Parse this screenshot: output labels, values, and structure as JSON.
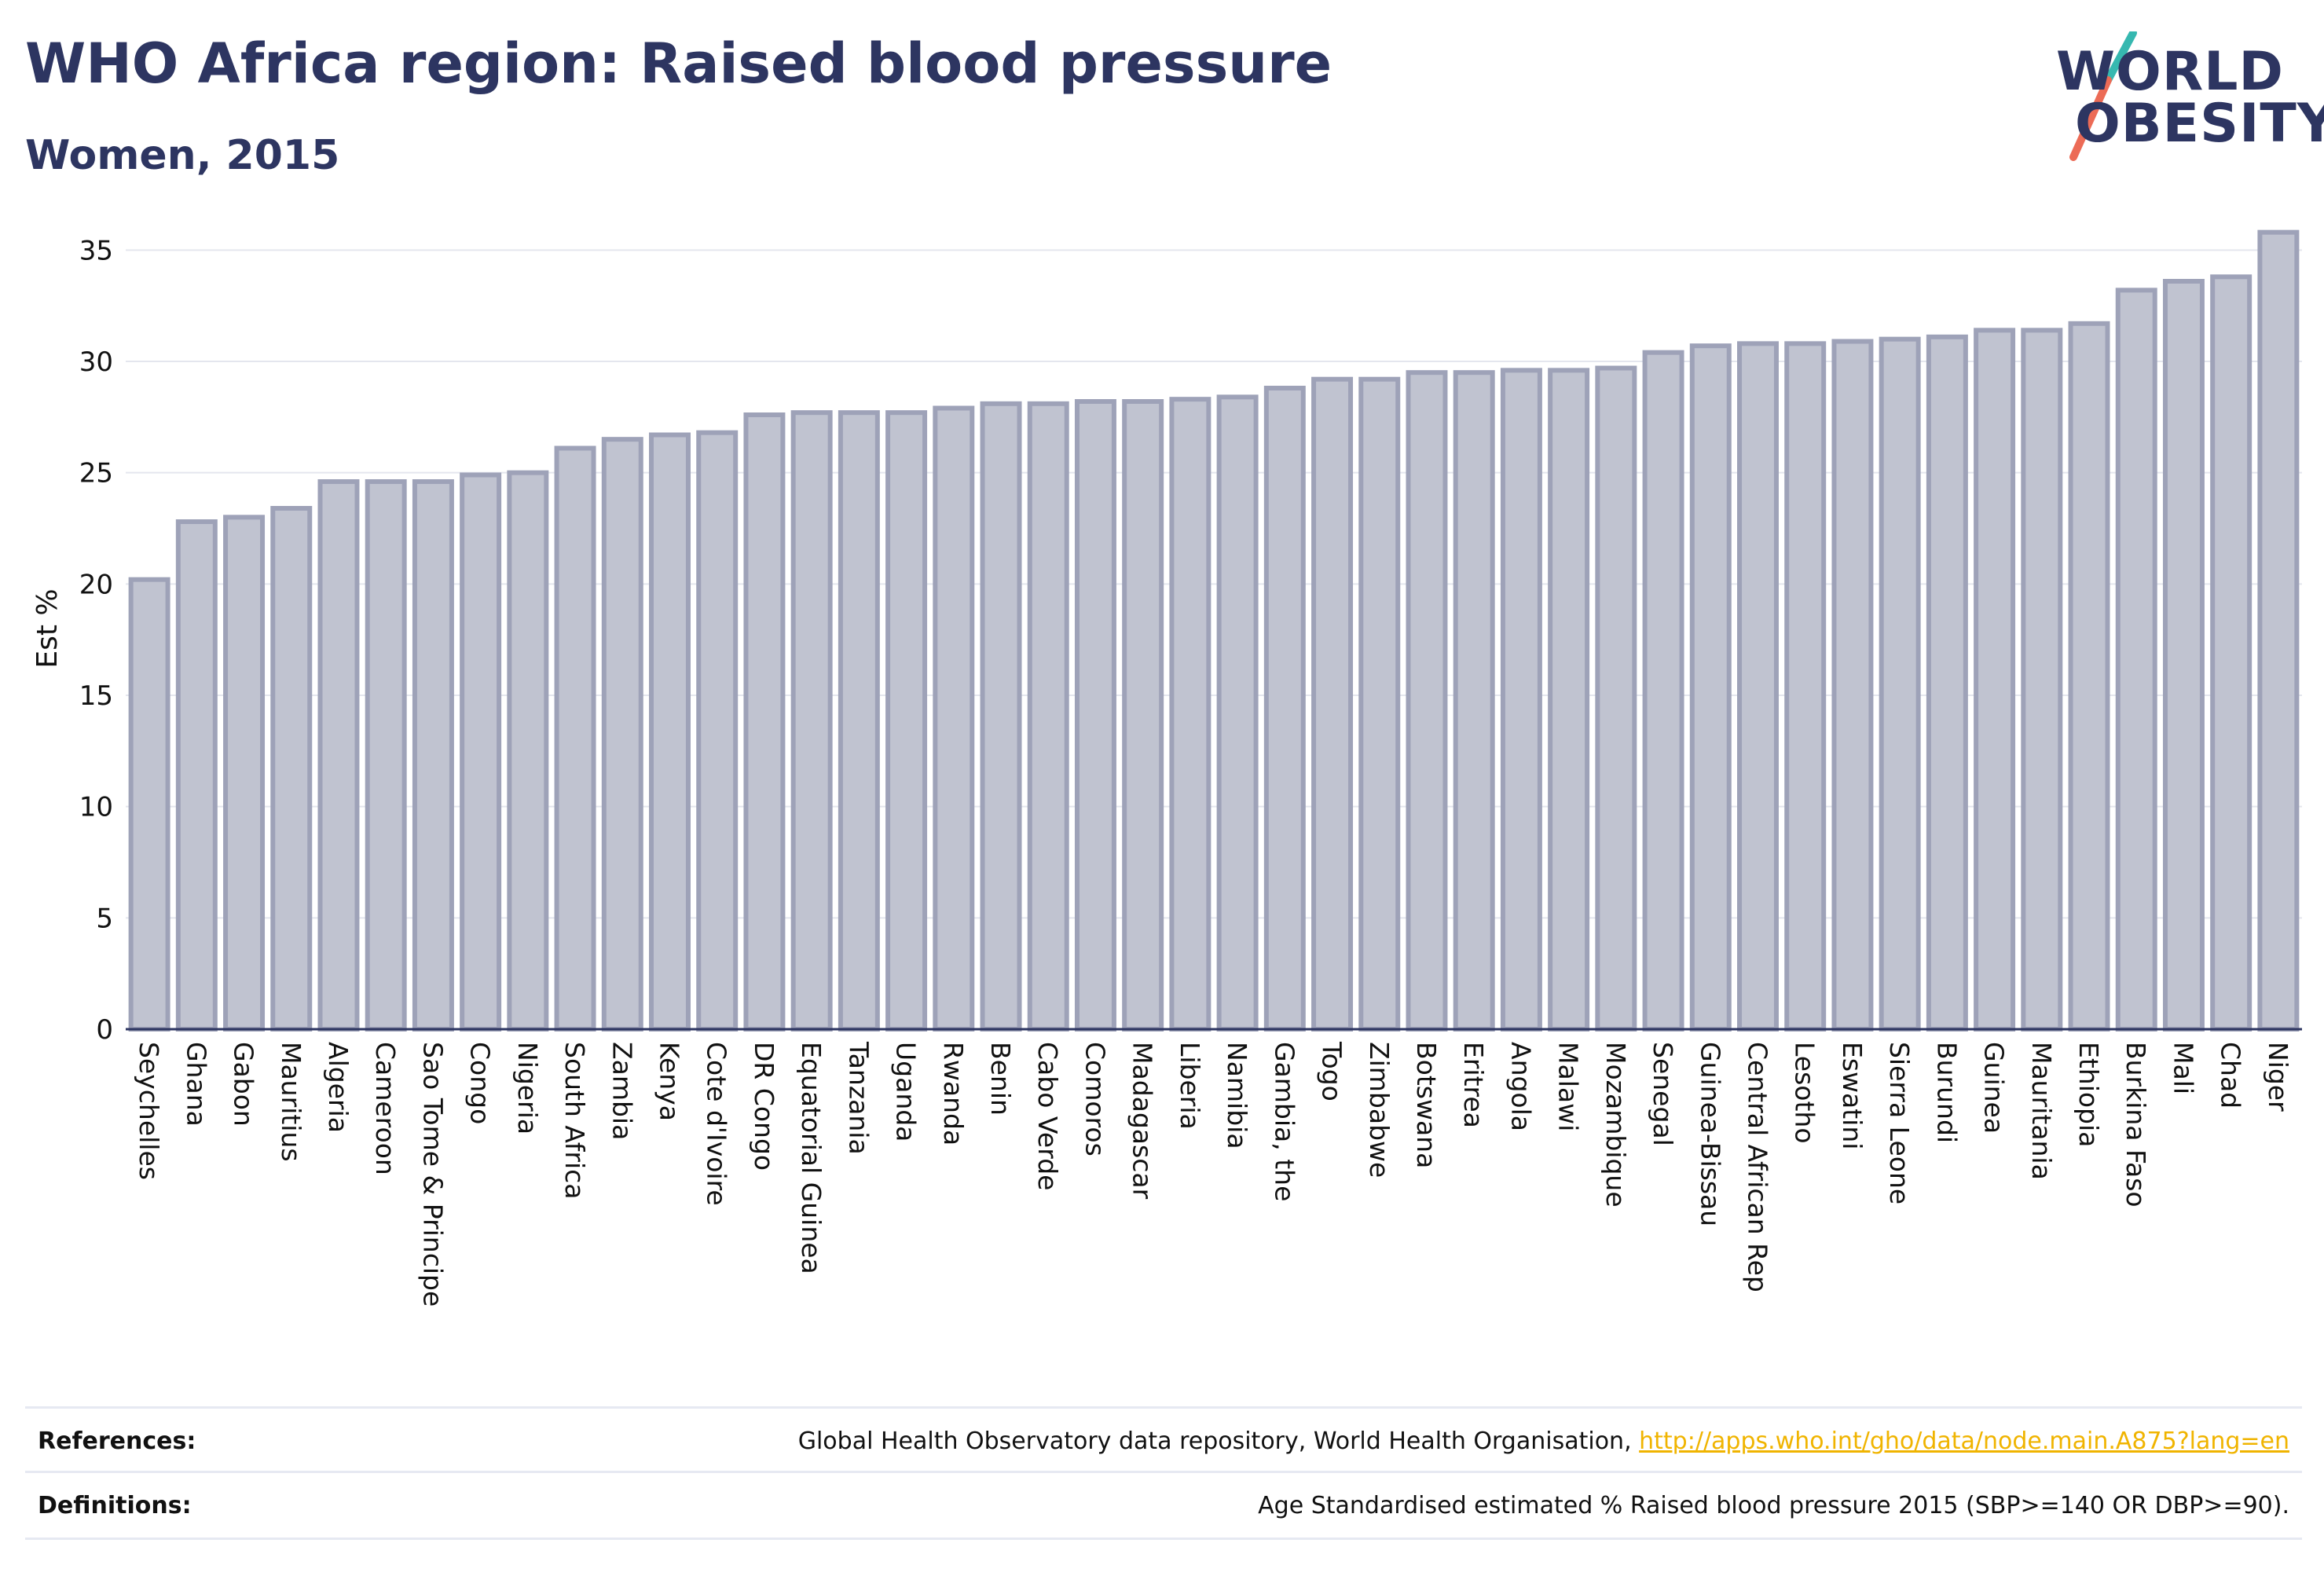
{
  "header": {
    "title": "WHO Africa region: Raised blood pressure",
    "subtitle": "Women, 2015"
  },
  "logo": {
    "line1": "WORLD",
    "line2": "OBESITY",
    "colors": {
      "text": "#2d3561",
      "slash_top": "#36b8b0",
      "slash_bottom": "#ec6b56"
    }
  },
  "chart_data": {
    "type": "bar",
    "title": "WHO Africa region: Raised blood pressure",
    "subtitle": "Women, 2015",
    "xlabel": "",
    "ylabel": "Est %",
    "ylim": [
      0,
      36
    ],
    "yticks": [
      0,
      5,
      10,
      15,
      20,
      25,
      30,
      35
    ],
    "grid": true,
    "legend": "none",
    "bar_fill": "#c0c3d0",
    "bar_stroke": "#9ea2b8",
    "categories": [
      "Seychelles",
      "Ghana",
      "Gabon",
      "Mauritius",
      "Algeria",
      "Cameroon",
      "Sao Tome & Principe",
      "Congo",
      "Nigeria",
      "South Africa",
      "Zambia",
      "Kenya",
      "Cote d'Ivoire",
      "DR Congo",
      "Equatorial Guinea",
      "Tanzania",
      "Uganda",
      "Rwanda",
      "Benin",
      "Cabo Verde",
      "Comoros",
      "Madagascar",
      "Liberia",
      "Namibia",
      "Gambia, the",
      "Togo",
      "Zimbabwe",
      "Botswana",
      "Eritrea",
      "Angola",
      "Malawi",
      "Mozambique",
      "Senegal",
      "Guinea-Bissau",
      "Central African Rep",
      "Lesotho",
      "Eswatini",
      "Sierra Leone",
      "Burundi",
      "Guinea",
      "Mauritania",
      "Ethiopia",
      "Burkina Faso",
      "Mali",
      "Chad",
      "Niger"
    ],
    "values": [
      20.2,
      22.8,
      23.0,
      23.4,
      24.6,
      24.6,
      24.6,
      24.9,
      25.0,
      26.1,
      26.5,
      26.7,
      26.8,
      27.6,
      27.7,
      27.7,
      27.7,
      27.9,
      28.1,
      28.1,
      28.2,
      28.2,
      28.3,
      28.4,
      28.8,
      29.2,
      29.2,
      29.5,
      29.5,
      29.6,
      29.6,
      29.7,
      30.4,
      30.7,
      30.8,
      30.8,
      30.9,
      31.0,
      31.1,
      31.4,
      31.4,
      31.7,
      33.2,
      33.6,
      33.8,
      35.8
    ]
  },
  "footer": {
    "references_label": "References:",
    "references_text": "Global Health Observatory data repository, World Health Organisation, ",
    "references_link": "http://apps.who.int/gho/data/node.main.A875?lang=en",
    "definitions_label": "Definitions:",
    "definitions_text": "Age Standardised estimated % Raised blood pressure 2015 (SBP>=140 OR DBP>=90)."
  }
}
